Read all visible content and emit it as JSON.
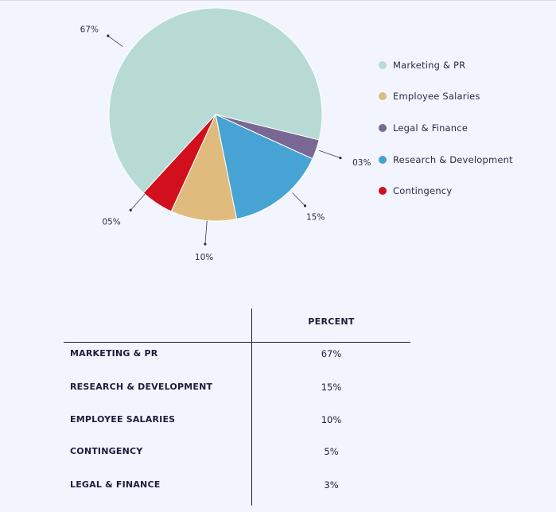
{
  "chart_data": {
    "type": "pie",
    "slices": [
      {
        "label": "Marketing & PR",
        "value": 67,
        "data_label": "67%",
        "color": "#b7dbd4"
      },
      {
        "label": "Legal & Finance",
        "value": 3,
        "data_label": "03%",
        "color": "#7a6894"
      },
      {
        "label": "Research & Development",
        "value": 15,
        "data_label": "15%",
        "color": "#46a3d3"
      },
      {
        "label": "Employee Salaries",
        "value": 10,
        "data_label": "10%",
        "color": "#dfbc7e"
      },
      {
        "label": "Contingency",
        "value": 5,
        "data_label": "05%",
        "color": "#d20f1d"
      }
    ],
    "legend_position": "right",
    "legend": [
      {
        "label": "Marketing & PR",
        "color": "#b7dbd4"
      },
      {
        "label": "Employee Salaries",
        "color": "#dfbc7e"
      },
      {
        "label": "Legal & Finance",
        "color": "#7a6894"
      },
      {
        "label": "Research & Development",
        "color": "#46a3d3"
      },
      {
        "label": "Contingency",
        "color": "#d20f1d"
      }
    ]
  },
  "table": {
    "header": "PERCENT",
    "rows": [
      {
        "name": "MARKETING & PR",
        "value": "67%"
      },
      {
        "name": "RESEARCH & DEVELOPMENT",
        "value": "15%"
      },
      {
        "name": "EMPLOYEE SALARIES",
        "value": "10%"
      },
      {
        "name": "CONTINGENCY",
        "value": "5%"
      },
      {
        "name": "LEGAL & FINANCE",
        "value": "3%"
      }
    ]
  }
}
